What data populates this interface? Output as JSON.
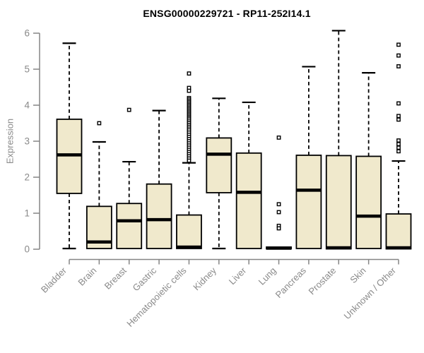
{
  "title": "ENSG00000229721 - RP11-252I14.1",
  "colors": {
    "box_fill": "#f0e9cc",
    "box_stroke": "#000000",
    "median": "#000000",
    "whisker": "#000000",
    "outlier": "#000000",
    "axis": "#858585",
    "tick_label": "#8a8a8a",
    "title": "#000000",
    "background": "#ffffff"
  },
  "chart_data": {
    "type": "boxplot",
    "title": "ENSG00000229721 - RP11-252I14.1",
    "xlabel": "",
    "ylabel": "Expression",
    "ylim": [
      0,
      6
    ],
    "yticks": [
      0,
      1,
      2,
      3,
      4,
      5,
      6
    ],
    "grid": false,
    "legend": false,
    "categories": [
      "Bladder",
      "Brain",
      "Breast",
      "Gastric",
      "Hematopoietic cells",
      "Kidney",
      "Liver",
      "Lung",
      "Pancreas",
      "Prostate",
      "Skin",
      "Unknown / Other"
    ],
    "series": [
      {
        "label": "Bladder",
        "whisker_low": 0.02,
        "q1": 1.55,
        "median": 2.62,
        "q3": 3.61,
        "whisker_high": 5.72,
        "outliers": []
      },
      {
        "label": "Brain",
        "whisker_low": null,
        "q1": 0.02,
        "median": 0.2,
        "q3": 1.19,
        "whisker_high": 2.98,
        "outliers": [
          3.5
        ]
      },
      {
        "label": "Breast",
        "whisker_low": null,
        "q1": 0.02,
        "median": 0.79,
        "q3": 1.27,
        "whisker_high": 2.43,
        "outliers": [
          3.87
        ]
      },
      {
        "label": "Gastric",
        "whisker_low": null,
        "q1": 0.02,
        "median": 0.82,
        "q3": 1.81,
        "whisker_high": 3.85,
        "outliers": []
      },
      {
        "label": "Hematopoietic cells",
        "whisker_low": null,
        "q1": 0.02,
        "median": 0.06,
        "q3": 0.95,
        "whisker_high": 2.4,
        "outliers": [
          4.88,
          4.48,
          4.4,
          4.2,
          4.16,
          4.12,
          4.08,
          4.04,
          4.0,
          3.96,
          3.92,
          3.88,
          3.84,
          3.8,
          3.76,
          3.72,
          3.68,
          3.64,
          3.6,
          3.55,
          3.5,
          3.45,
          3.4,
          3.35,
          3.3,
          3.24,
          3.18,
          3.12,
          3.06,
          3.0,
          2.94,
          2.88,
          2.82,
          2.76,
          2.7,
          2.64,
          2.58,
          2.52,
          2.46
        ]
      },
      {
        "label": "Kidney",
        "whisker_low": 0.02,
        "q1": 1.57,
        "median": 2.64,
        "q3": 3.09,
        "whisker_high": 4.19,
        "outliers": []
      },
      {
        "label": "Liver",
        "whisker_low": null,
        "q1": 0.02,
        "median": 1.58,
        "q3": 2.67,
        "whisker_high": 4.08,
        "outliers": []
      },
      {
        "label": "Lung",
        "whisker_low": null,
        "q1": 0.01,
        "median": 0.03,
        "q3": 0.06,
        "whisker_high": null,
        "outliers": [
          3.1,
          1.25,
          1.03,
          0.65,
          0.58
        ]
      },
      {
        "label": "Pancreas",
        "whisker_low": null,
        "q1": 0.02,
        "median": 1.64,
        "q3": 2.61,
        "whisker_high": 5.07,
        "outliers": []
      },
      {
        "label": "Prostate",
        "whisker_low": null,
        "q1": 0.01,
        "median": 0.04,
        "q3": 2.6,
        "whisker_high": 6.07,
        "outliers": []
      },
      {
        "label": "Skin",
        "whisker_low": null,
        "q1": 0.02,
        "median": 0.92,
        "q3": 2.58,
        "whisker_high": 4.9,
        "outliers": []
      },
      {
        "label": "Unknown / Other",
        "whisker_low": null,
        "q1": 0.01,
        "median": 0.04,
        "q3": 0.98,
        "whisker_high": 2.45,
        "outliers": [
          2.72,
          2.82,
          2.92,
          3.02,
          3.6,
          3.7,
          4.05,
          5.08,
          5.38,
          5.68
        ]
      }
    ]
  }
}
